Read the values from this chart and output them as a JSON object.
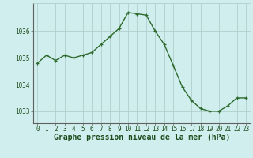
{
  "x": [
    0,
    1,
    2,
    3,
    4,
    5,
    6,
    7,
    8,
    9,
    10,
    11,
    12,
    13,
    14,
    15,
    16,
    17,
    18,
    19,
    20,
    21,
    22,
    23
  ],
  "y": [
    1034.8,
    1035.1,
    1034.9,
    1035.1,
    1035.0,
    1035.1,
    1035.2,
    1035.5,
    1035.8,
    1036.1,
    1036.7,
    1036.65,
    1036.6,
    1036.0,
    1035.5,
    1034.7,
    1033.9,
    1033.4,
    1033.1,
    1033.0,
    1033.0,
    1033.2,
    1033.5,
    1033.5
  ],
  "line_color": "#2d6a2d",
  "marker_color": "#2d6a2d",
  "bg_color": "#d0eeed",
  "grid_color": "#b0d0cc",
  "xlabel": "Graphe pression niveau de la mer (hPa)",
  "xlabel_color": "#1a4a1a",
  "yticks": [
    1033,
    1034,
    1035,
    1036
  ],
  "xtick_labels": [
    "0",
    "1",
    "2",
    "3",
    "4",
    "5",
    "6",
    "7",
    "8",
    "9",
    "10",
    "11",
    "12",
    "13",
    "14",
    "15",
    "16",
    "17",
    "18",
    "19",
    "20",
    "21",
    "22",
    "23"
  ],
  "ylim": [
    1032.55,
    1037.05
  ],
  "xlim": [
    -0.5,
    23.5
  ],
  "tick_fontsize": 5.5,
  "xlabel_fontsize": 7,
  "linewidth": 1.0,
  "markersize": 3.0
}
